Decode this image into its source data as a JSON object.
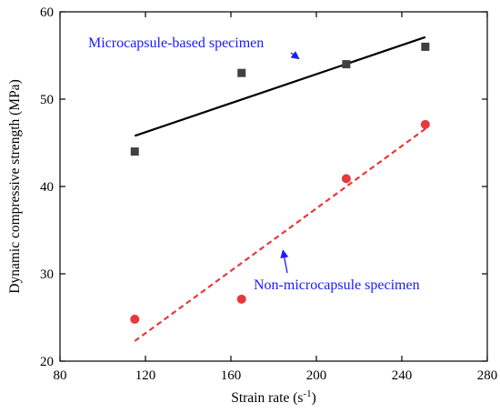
{
  "chart_data": {
    "type": "scatter",
    "xlabel": "Strain rate (s",
    "xlabel_superscript": "-1",
    "xlabel_suffix": ")",
    "ylabel": "Dynamic compressive strength (MPa)",
    "xlim": [
      80,
      280
    ],
    "ylim": [
      20,
      60
    ],
    "xticks": [
      80,
      120,
      160,
      200,
      240,
      280
    ],
    "yticks": [
      20,
      30,
      40,
      50,
      60
    ],
    "grid": false,
    "series": [
      {
        "name": "Microcapsule-based specimen",
        "marker": "square",
        "color": "#404040",
        "x": [
          115,
          165,
          214,
          251
        ],
        "y": [
          44,
          53,
          54,
          56
        ],
        "fit_line": {
          "style": "solid",
          "color": "#000000",
          "x": [
            115,
            251
          ],
          "y": [
            45.8,
            57.1
          ]
        }
      },
      {
        "name": "Non-microcapsule specimen",
        "marker": "circle",
        "color": "#e8383d",
        "x": [
          115,
          165,
          214,
          251
        ],
        "y": [
          24.8,
          27.1,
          40.9,
          47.1
        ],
        "fit_line": {
          "style": "dashed",
          "color": "#e8383d",
          "x": [
            115,
            251
          ],
          "y": [
            22.3,
            46.6
          ]
        }
      }
    ],
    "annotations": [
      {
        "text": "Microcapsule-based specimen",
        "color": "#1a1aff",
        "arrow_to": [
          214,
          54
        ]
      },
      {
        "text": "Non-microcapsule specimen",
        "color": "#1a1aff",
        "arrow_to": [
          175,
          33
        ]
      }
    ]
  }
}
